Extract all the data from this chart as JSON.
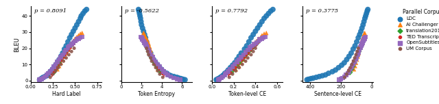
{
  "panels": [
    {
      "xlabel": "Hard Label",
      "rho": "p = 0.8091",
      "xlim": [
        0.05,
        0.8
      ],
      "xticks": [
        0.0,
        0.25,
        0.5,
        0.75
      ]
    },
    {
      "xlabel": "Token Entropy",
      "rho": "p = -0.5622",
      "xlim": [
        0,
        7
      ],
      "xticks": [
        0,
        2,
        4,
        6
      ]
    },
    {
      "xlabel": "Token-level CE",
      "rho": "p = 0.7792",
      "xlim": [
        0.0,
        0.65
      ],
      "xticks": [
        0.0,
        0.2,
        0.4,
        0.6
      ]
    },
    {
      "xlabel": "Sentence-level CE",
      "rho": "p = 0.3775",
      "xlim": [
        450,
        -10
      ],
      "xticks": [
        400,
        200,
        0
      ]
    }
  ],
  "corpora": [
    {
      "name": "LDC",
      "color": "#1f77b4",
      "marker": "o",
      "size": 9
    },
    {
      "name": "AI Challenger",
      "color": "#ff7f0e",
      "marker": "^",
      "size": 7
    },
    {
      "name": "translation2019zh",
      "color": "#2ca02c",
      "marker": "D",
      "size": 6
    },
    {
      "name": "TED Transcripts",
      "color": "#d62728",
      "marker": "P",
      "size": 6
    },
    {
      "name": "OpenSubtitles",
      "color": "#9467bd",
      "marker": "s",
      "size": 7
    },
    {
      "name": "UM Corpus",
      "color": "#8c564b",
      "marker": "o",
      "size": 5
    }
  ],
  "ylabel": "BLEU",
  "ylim": [
    -1,
    46
  ],
  "yticks": [
    0,
    10,
    20,
    30,
    40
  ],
  "data": {
    "LDC": {
      "hard_label": [
        0.1,
        0.11,
        0.12,
        0.13,
        0.14,
        0.16,
        0.18,
        0.19,
        0.21,
        0.22,
        0.24,
        0.26,
        0.28,
        0.3,
        0.32,
        0.34,
        0.36,
        0.38,
        0.4,
        0.42,
        0.44,
        0.46,
        0.48,
        0.5,
        0.52,
        0.54,
        0.56,
        0.57,
        0.59,
        0.61,
        0.63
      ],
      "token_entropy": [
        6.3,
        6.1,
        5.9,
        5.7,
        5.5,
        5.2,
        4.9,
        4.7,
        4.5,
        4.2,
        4.0,
        3.8,
        3.6,
        3.4,
        3.2,
        3.0,
        2.9,
        2.7,
        2.6,
        2.5,
        2.4,
        2.3,
        2.2,
        2.1,
        2.0,
        1.95,
        1.9,
        1.85,
        1.8,
        1.75,
        1.7
      ],
      "token_ce": [
        0.04,
        0.05,
        0.06,
        0.07,
        0.08,
        0.09,
        0.1,
        0.11,
        0.12,
        0.14,
        0.15,
        0.17,
        0.19,
        0.21,
        0.23,
        0.25,
        0.27,
        0.3,
        0.32,
        0.34,
        0.36,
        0.38,
        0.4,
        0.42,
        0.44,
        0.46,
        0.48,
        0.5,
        0.52,
        0.54,
        0.56
      ],
      "sentence_ce": [
        420,
        410,
        395,
        380,
        360,
        340,
        320,
        300,
        280,
        255,
        235,
        215,
        195,
        178,
        162,
        147,
        133,
        120,
        108,
        97,
        87,
        78,
        70,
        63,
        56,
        50,
        44,
        39,
        34,
        29,
        25
      ],
      "bleu": [
        0.5,
        0.8,
        1.2,
        1.5,
        2.0,
        2.5,
        3.0,
        3.5,
        4.5,
        5.5,
        6.5,
        8.0,
        9.5,
        11.0,
        13.0,
        15.0,
        17.0,
        19.5,
        21.5,
        24.0,
        26.5,
        28.5,
        30.5,
        32.5,
        34.5,
        36.5,
        38.5,
        40.0,
        41.5,
        43.0,
        44.0
      ]
    },
    "AI Challenger": {
      "hard_label": [
        0.3,
        0.32,
        0.34,
        0.36,
        0.38,
        0.4,
        0.42,
        0.44,
        0.46,
        0.48,
        0.5,
        0.52,
        0.54,
        0.56,
        0.58
      ],
      "token_entropy": [
        3.6,
        3.5,
        3.3,
        3.2,
        3.1,
        3.0,
        2.9,
        2.8,
        2.7,
        2.6,
        2.5,
        2.4,
        2.3,
        2.25,
        2.2
      ],
      "token_ce": [
        0.22,
        0.25,
        0.27,
        0.29,
        0.31,
        0.33,
        0.35,
        0.37,
        0.39,
        0.41,
        0.43,
        0.45,
        0.46,
        0.48,
        0.5
      ],
      "sentence_ce": [
        115,
        108,
        102,
        96,
        90,
        85,
        80,
        75,
        70,
        65,
        60,
        56,
        52,
        48,
        45
      ],
      "bleu": [
        7.0,
        9.0,
        11.0,
        13.0,
        15.0,
        17.0,
        19.0,
        21.0,
        23.0,
        24.5,
        26.0,
        27.0,
        28.0,
        29.0,
        29.5
      ]
    },
    "translation2019zh": {
      "hard_label": [
        0.26,
        0.28,
        0.3,
        0.32,
        0.34,
        0.36,
        0.38,
        0.4,
        0.42,
        0.44,
        0.46,
        0.48
      ],
      "token_entropy": [
        3.9,
        3.7,
        3.5,
        3.3,
        3.1,
        2.9,
        2.8,
        2.7,
        2.6,
        2.5,
        2.4,
        2.3
      ],
      "token_ce": [
        0.18,
        0.2,
        0.23,
        0.25,
        0.28,
        0.3,
        0.32,
        0.34,
        0.36,
        0.38,
        0.4,
        0.42
      ],
      "sentence_ce": [
        140,
        130,
        120,
        112,
        104,
        96,
        89,
        82,
        76,
        70,
        65,
        60
      ],
      "bleu": [
        5.0,
        7.0,
        9.0,
        11.0,
        13.0,
        15.0,
        16.5,
        18.0,
        19.5,
        21.0,
        22.0,
        23.5
      ]
    },
    "TED Transcripts": {
      "hard_label": [
        0.24,
        0.26,
        0.28,
        0.3,
        0.32,
        0.34,
        0.36,
        0.38,
        0.4,
        0.42,
        0.44,
        0.46,
        0.48,
        0.5
      ],
      "token_entropy": [
        4.2,
        4.0,
        3.8,
        3.6,
        3.4,
        3.2,
        3.0,
        2.9,
        2.8,
        2.7,
        2.6,
        2.5,
        2.4,
        2.3
      ],
      "token_ce": [
        0.15,
        0.17,
        0.2,
        0.22,
        0.24,
        0.27,
        0.29,
        0.31,
        0.33,
        0.35,
        0.37,
        0.39,
        0.41,
        0.43
      ],
      "sentence_ce": [
        160,
        150,
        140,
        130,
        121,
        112,
        104,
        96,
        89,
        82,
        76,
        70,
        65,
        60
      ],
      "bleu": [
        3.5,
        5.0,
        7.0,
        8.5,
        10.5,
        12.5,
        14.0,
        15.5,
        17.0,
        18.5,
        20.0,
        21.5,
        22.5,
        24.0
      ]
    },
    "OpenSubtitles": {
      "hard_label": [
        0.1,
        0.12,
        0.14,
        0.16,
        0.18,
        0.2,
        0.22,
        0.24,
        0.26,
        0.28,
        0.3,
        0.32,
        0.34,
        0.36,
        0.38,
        0.4,
        0.42,
        0.44,
        0.46,
        0.48,
        0.5,
        0.52,
        0.54,
        0.56,
        0.58
      ],
      "token_entropy": [
        5.8,
        5.5,
        5.2,
        4.9,
        4.6,
        4.4,
        4.2,
        4.0,
        3.8,
        3.6,
        3.4,
        3.2,
        3.1,
        2.9,
        2.8,
        2.7,
        2.6,
        2.5,
        2.4,
        2.3,
        2.2,
        2.1,
        2.05,
        2.0,
        1.95
      ],
      "token_ce": [
        0.06,
        0.07,
        0.09,
        0.1,
        0.12,
        0.13,
        0.15,
        0.17,
        0.19,
        0.21,
        0.23,
        0.25,
        0.27,
        0.29,
        0.31,
        0.33,
        0.35,
        0.37,
        0.39,
        0.41,
        0.43,
        0.44,
        0.46,
        0.47,
        0.49
      ],
      "sentence_ce": [
        210,
        200,
        188,
        177,
        166,
        156,
        146,
        137,
        128,
        120,
        112,
        105,
        98,
        91,
        85,
        79,
        74,
        69,
        64,
        59,
        55,
        51,
        47,
        44,
        40
      ],
      "bleu": [
        0.5,
        1.0,
        1.5,
        2.5,
        3.5,
        4.5,
        5.5,
        7.0,
        8.5,
        10.0,
        11.5,
        13.0,
        14.5,
        16.0,
        17.5,
        19.0,
        20.5,
        21.5,
        22.5,
        23.5,
        24.5,
        25.5,
        26.0,
        26.5,
        27.0
      ]
    },
    "UM Corpus": {
      "hard_label": [
        0.22,
        0.25,
        0.28,
        0.31,
        0.34,
        0.37,
        0.4,
        0.43,
        0.46,
        0.49
      ],
      "token_entropy": [
        4.1,
        3.8,
        3.6,
        3.4,
        3.2,
        3.0,
        2.9,
        2.7,
        2.6,
        2.5
      ],
      "token_ce": [
        0.16,
        0.19,
        0.22,
        0.25,
        0.28,
        0.31,
        0.33,
        0.36,
        0.38,
        0.4
      ],
      "sentence_ce": [
        175,
        162,
        150,
        139,
        129,
        119,
        110,
        102,
        94,
        87
      ],
      "bleu": [
        2.0,
        4.0,
        6.0,
        8.0,
        10.0,
        12.0,
        14.0,
        16.0,
        18.0,
        20.0
      ]
    }
  },
  "legend_title": "Parallel Corpus",
  "fig_width": 6.4,
  "fig_height": 1.52
}
